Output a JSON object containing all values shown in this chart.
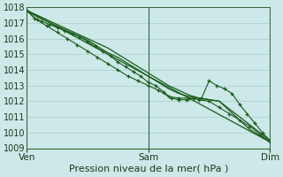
{
  "xlabel": "Pression niveau de la mer( hPa )",
  "background_color": "#cce8e8",
  "grid_color": "#aacccc",
  "line_color": "#1a5c1a",
  "ylim": [
    1009,
    1018
  ],
  "yticks": [
    1009,
    1010,
    1011,
    1012,
    1013,
    1014,
    1015,
    1016,
    1017,
    1018
  ],
  "xtick_labels": [
    "Ven",
    "Sam",
    "Dim"
  ],
  "xtick_positions": [
    0,
    48,
    96
  ],
  "xlim": [
    0,
    96
  ],
  "series_smooth1_x": [
    0,
    4,
    8,
    12,
    16,
    20,
    24,
    28,
    32,
    36,
    40,
    44,
    48,
    52,
    56,
    60,
    64,
    68,
    72,
    76,
    80,
    84,
    88,
    92,
    96
  ],
  "series_smooth1_y": [
    1017.8,
    1017.4,
    1017.1,
    1016.8,
    1016.5,
    1016.2,
    1015.9,
    1015.5,
    1015.1,
    1014.8,
    1014.4,
    1014.0,
    1013.6,
    1013.2,
    1012.8,
    1012.5,
    1012.3,
    1012.2,
    1012.1,
    1012.0,
    1011.5,
    1011.0,
    1010.5,
    1010.0,
    1009.5
  ],
  "series_smooth2_x": [
    0,
    4,
    8,
    12,
    16,
    20,
    24,
    28,
    32,
    36,
    40,
    44,
    48,
    52,
    56,
    60,
    64,
    68,
    72,
    76,
    80,
    84,
    88,
    92,
    96
  ],
  "series_smooth2_y": [
    1017.8,
    1017.5,
    1017.2,
    1016.9,
    1016.6,
    1016.3,
    1016.0,
    1015.7,
    1015.4,
    1015.0,
    1014.6,
    1014.2,
    1013.8,
    1013.4,
    1013.0,
    1012.7,
    1012.4,
    1012.2,
    1012.1,
    1012.0,
    1011.4,
    1010.8,
    1010.2,
    1009.8,
    1009.4
  ],
  "series_trend_x": [
    0,
    96
  ],
  "series_trend_y": [
    1017.8,
    1009.4
  ],
  "series_markers1_x": [
    0,
    3,
    6,
    9,
    12,
    15,
    18,
    21,
    24,
    27,
    30,
    33,
    36,
    39,
    42,
    45,
    48,
    51,
    54,
    57,
    60,
    63,
    66,
    69,
    72,
    75,
    78,
    81,
    84,
    87,
    90,
    93,
    96
  ],
  "series_markers1_y": [
    1017.8,
    1017.3,
    1017.1,
    1016.9,
    1016.7,
    1016.5,
    1016.3,
    1016.1,
    1015.8,
    1015.5,
    1015.2,
    1014.9,
    1014.5,
    1014.2,
    1013.9,
    1013.6,
    1013.2,
    1013.0,
    1012.6,
    1012.2,
    1012.1,
    1012.1,
    1012.2,
    1012.2,
    1013.3,
    1013.0,
    1012.8,
    1012.5,
    1011.8,
    1011.2,
    1010.6,
    1010.0,
    1009.5
  ],
  "series_markers2_x": [
    0,
    4,
    8,
    12,
    16,
    20,
    24,
    28,
    32,
    36,
    40,
    44,
    48,
    52,
    56,
    60,
    64,
    68,
    72,
    76,
    80,
    84,
    88,
    92,
    96
  ],
  "series_markers2_y": [
    1017.8,
    1017.2,
    1016.8,
    1016.4,
    1016.0,
    1015.6,
    1015.2,
    1014.8,
    1014.4,
    1014.0,
    1013.6,
    1013.3,
    1013.0,
    1012.7,
    1012.3,
    1012.2,
    1012.2,
    1012.1,
    1012.0,
    1011.6,
    1011.2,
    1010.8,
    1010.4,
    1009.9,
    1009.4
  ]
}
